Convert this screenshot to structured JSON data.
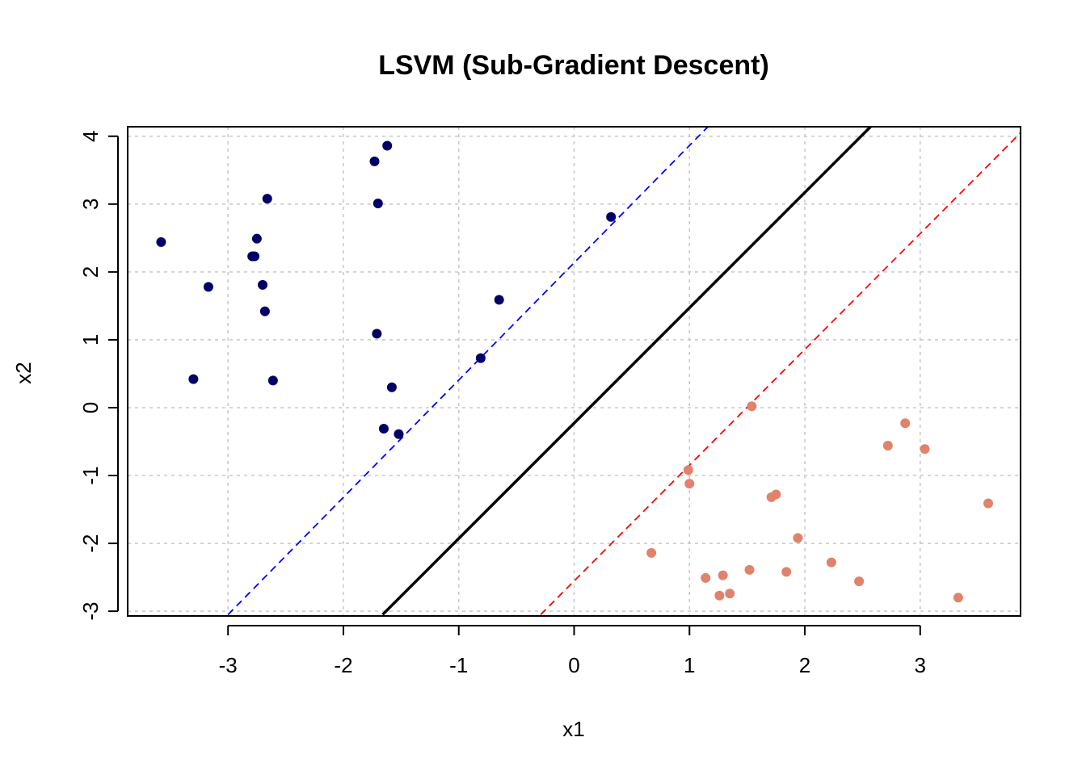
{
  "chart_data": {
    "type": "scatter",
    "title": "LSVM (Sub-Gradient Descent)",
    "xlabel": "x1",
    "ylabel": "x2",
    "xlim": [
      -3.87,
      3.87
    ],
    "ylim": [
      -3.07,
      4.14
    ],
    "xticks": [
      "-3",
      "-2",
      "-1",
      "0",
      "1",
      "2",
      "3"
    ],
    "yticks": [
      "-3",
      "-2",
      "-1",
      "0",
      "1",
      "2",
      "3",
      "4"
    ],
    "grid": true,
    "series": [
      {
        "color": "#000066",
        "points": [
          [
            -3.58,
            2.44
          ],
          [
            -3.3,
            0.42
          ],
          [
            -3.17,
            1.78
          ],
          [
            -2.66,
            3.08
          ],
          [
            -2.75,
            2.49
          ],
          [
            -2.79,
            2.23
          ],
          [
            -2.77,
            2.23
          ],
          [
            -2.7,
            1.81
          ],
          [
            -2.68,
            1.42
          ],
          [
            -2.61,
            0.4
          ],
          [
            -1.73,
            3.63
          ],
          [
            -1.62,
            3.86
          ],
          [
            -1.7,
            3.01
          ],
          [
            -1.71,
            1.09
          ],
          [
            -1.58,
            0.3
          ],
          [
            -1.65,
            -0.31
          ],
          [
            -1.52,
            -0.39
          ],
          [
            -0.81,
            0.73
          ],
          [
            -0.65,
            1.59
          ],
          [
            0.32,
            2.81
          ]
        ]
      },
      {
        "color": "#E0826C",
        "points": [
          [
            1.54,
            0.02
          ],
          [
            0.99,
            -0.92
          ],
          [
            1.0,
            -1.12
          ],
          [
            0.67,
            -2.14
          ],
          [
            1.14,
            -2.51
          ],
          [
            1.29,
            -2.47
          ],
          [
            1.26,
            -2.77
          ],
          [
            1.35,
            -2.74
          ],
          [
            1.52,
            -2.39
          ],
          [
            1.71,
            -1.32
          ],
          [
            1.75,
            -1.28
          ],
          [
            1.84,
            -2.42
          ],
          [
            1.94,
            -1.92
          ],
          [
            2.23,
            -2.28
          ],
          [
            2.47,
            -2.56
          ],
          [
            2.72,
            -0.56
          ],
          [
            2.87,
            -0.23
          ],
          [
            3.04,
            -0.61
          ],
          [
            3.33,
            -2.8
          ],
          [
            3.59,
            -1.41
          ]
        ]
      }
    ],
    "lines": [
      {
        "color": "#000000",
        "style": "solid",
        "points": [
          [
            -1.66,
            -3.05
          ],
          [
            2.57,
            4.14
          ]
        ]
      },
      {
        "color": "#0000FF",
        "style": "dashed",
        "points": [
          [
            -3.0,
            -3.05
          ],
          [
            1.16,
            4.14
          ]
        ]
      },
      {
        "color": "#FF0000",
        "style": "dashed",
        "points": [
          [
            -0.29,
            -3.05
          ],
          [
            3.87,
            4.05
          ]
        ]
      }
    ]
  }
}
